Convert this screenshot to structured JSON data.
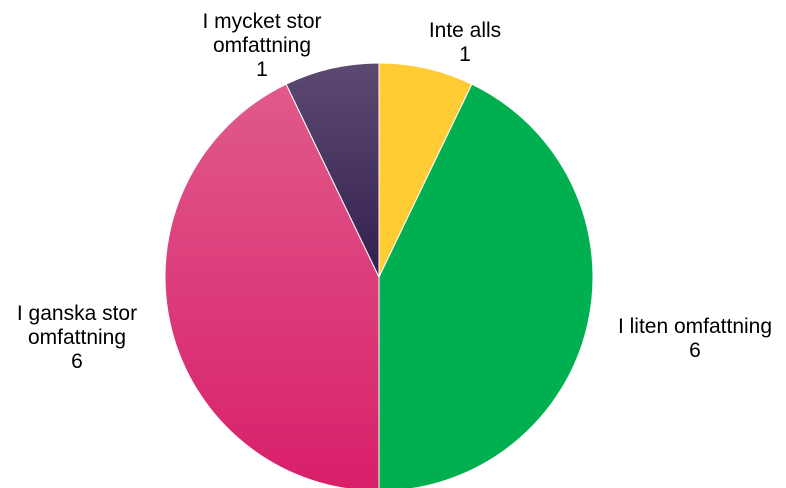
{
  "chart_data": {
    "type": "pie",
    "start_angle_deg": 0,
    "direction": "clockwise",
    "slices": [
      {
        "name": "Inte alls",
        "value": 1,
        "color": "#ffcc33",
        "color_top": "#ffcc33",
        "label_lines": [
          "Inte alls",
          "1"
        ]
      },
      {
        "name": "I liten omfattning",
        "value": 6,
        "color": "#00b050",
        "color_top": "#00b050",
        "label_lines": [
          "I liten omfattning",
          "6"
        ]
      },
      {
        "name": "I ganska stor omfattning",
        "value": 6,
        "color": "#d81f6a",
        "color_top": "#e05a8a",
        "label_lines": [
          "I ganska stor",
          "omfattning",
          "6"
        ]
      },
      {
        "name": "I mycket stor omfattning",
        "value": 1,
        "color": "#331f4f",
        "color_top": "#5c4a72",
        "label_lines": [
          "I mycket stor",
          "omfattning",
          "1"
        ]
      }
    ]
  }
}
